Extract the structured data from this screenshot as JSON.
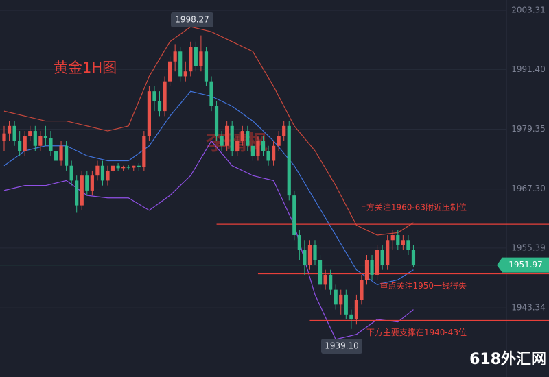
{
  "chart_data": {
    "type": "candlestick",
    "title": "黄金1H图",
    "watermark": "李晴枫",
    "site": "618外汇网",
    "ylim": [
      1929.4,
      2005.4
    ],
    "yticks": [
      2003.31,
      {
        "value": 1991.4,
        "label": "1991.40"
      },
      1979.35,
      {
        "value": 1967.3,
        "label": "1967.30"
      },
      1955.39,
      1943.34
    ],
    "grid": true,
    "up_color": "#e8524a",
    "down_color": "#2fb889",
    "candles": {
      "open": [
        1977,
        1978.5,
        1980,
        1977,
        1975,
        1978,
        1979,
        1976,
        1978,
        1977.5,
        1975,
        1973,
        1976,
        1972,
        1969,
        1964,
        1970,
        1967,
        1970,
        1972,
        1969,
        1971,
        1972,
        1971.5,
        1971.8,
        1971.6,
        1972,
        1971.7,
        1978,
        1987,
        1985,
        1983,
        1989,
        1993,
        1995,
        1990,
        1991,
        1996,
        1992,
        1995,
        1989,
        1984,
        1978,
        1976,
        1980,
        1975,
        1977,
        1979,
        1976,
        1974,
        1977,
        1975,
        1973,
        1976,
        1978,
        1980,
        1966,
        1958,
        1955,
        1952,
        1956,
        1953,
        1948,
        1950,
        1947,
        1944,
        1946,
        1942,
        1941,
        1945,
        1949,
        1953,
        1950,
        1955,
        1952,
        1957,
        1958,
        1956,
        1957,
        1955
      ],
      "high": [
        1980,
        1981,
        1981,
        1979,
        1979,
        1980,
        1980,
        1979,
        1980,
        1979,
        1977,
        1977,
        1977,
        1973,
        1970,
        1971,
        1971,
        1971,
        1973,
        1973,
        1972,
        1972.5,
        1972.5,
        1972,
        1972.2,
        1972,
        1972.5,
        1979,
        1988,
        1988,
        1987,
        1990,
        1994,
        1996.5,
        1996,
        1993,
        1997,
        1997,
        1998.27,
        1996,
        1990,
        1985,
        1979,
        1981,
        1981,
        1978,
        1980,
        1980,
        1977,
        1978,
        1978,
        1976,
        1977,
        1979,
        1981,
        1981,
        1967,
        1959,
        1957,
        1957,
        1957,
        1954,
        1951,
        1951,
        1948,
        1947,
        1947,
        1943,
        1946,
        1950,
        1954,
        1954,
        1956,
        1956,
        1958,
        1959,
        1959,
        1958,
        1958,
        1956
      ],
      "low": [
        1975,
        1977,
        1976,
        1974,
        1974,
        1977,
        1975,
        1975,
        1976,
        1974,
        1972,
        1972,
        1971,
        1968,
        1962.5,
        1963,
        1966,
        1966,
        1969,
        1968,
        1968,
        1970.5,
        1971,
        1971,
        1971.2,
        1971,
        1971,
        1971,
        1977,
        1983,
        1982,
        1982,
        1988,
        1991,
        1989,
        1989,
        1990,
        1991,
        1991,
        1988,
        1983,
        1977,
        1975,
        1975,
        1974,
        1974,
        1976,
        1975,
        1973,
        1973,
        1974,
        1972,
        1972,
        1975,
        1977,
        1965,
        1957,
        1953,
        1950,
        1951,
        1952,
        1947,
        1947,
        1946,
        1943,
        1942,
        1941,
        1939.1,
        1940,
        1944,
        1948,
        1949,
        1949,
        1951,
        1951,
        1955,
        1955,
        1955,
        1954,
        1951.5
      ],
      "close": [
        1978.5,
        1980,
        1977,
        1975,
        1978,
        1979,
        1976,
        1978,
        1977.5,
        1975,
        1973,
        1976,
        1972,
        1969,
        1964,
        1970,
        1967,
        1970,
        1972,
        1969,
        1971,
        1972,
        1971.5,
        1971.8,
        1971.6,
        1972,
        1971.7,
        1978,
        1987,
        1985,
        1983,
        1989,
        1993,
        1995,
        1990,
        1991,
        1996,
        1992,
        1995,
        1989,
        1984,
        1978,
        1976,
        1980,
        1975,
        1977,
        1979,
        1976,
        1974,
        1977,
        1975,
        1973,
        1976,
        1978,
        1980,
        1966,
        1958,
        1955,
        1952,
        1956,
        1953,
        1948,
        1950,
        1947,
        1944,
        1946,
        1942,
        1941,
        1945,
        1949,
        1953,
        1950,
        1955,
        1952,
        1957,
        1958,
        1956,
        1957,
        1955,
        1951.97
      ]
    },
    "bands": [
      {
        "color": "#c9483c",
        "x": [
          0,
          4,
          8,
          12,
          16,
          20,
          24,
          28,
          32,
          36,
          40,
          44,
          48,
          52,
          56,
          60,
          64,
          68,
          72,
          76,
          79
        ],
        "values": [
          1983,
          1982,
          1981,
          1981,
          1980,
          1979,
          1980,
          1990,
          1997,
          2000,
          1999,
          1997,
          1995,
          1988,
          1980,
          1975,
          1968,
          1960,
          1958,
          1958.5,
          1960.5
        ]
      },
      {
        "color": "#4174dc",
        "x": [
          0,
          4,
          8,
          12,
          16,
          20,
          24,
          28,
          32,
          36,
          40,
          44,
          48,
          52,
          56,
          60,
          64,
          68,
          72,
          76,
          79
        ],
        "values": [
          1972,
          1975,
          1976,
          1976,
          1974,
          1973,
          1973,
          1976,
          1982,
          1987,
          1986,
          1984,
          1981,
          1977,
          1972,
          1965,
          1958,
          1951,
          1948,
          1949,
          1951
        ]
      },
      {
        "color": "#9050e6",
        "x": [
          0,
          4,
          8,
          12,
          16,
          20,
          24,
          28,
          32,
          36,
          40,
          44,
          48,
          52,
          56,
          60,
          64,
          68,
          72,
          76,
          79
        ],
        "values": [
          1967,
          1968,
          1968,
          1969,
          1966,
          1965.5,
          1965.5,
          1963,
          1966,
          1970,
          1977,
          1972,
          1970,
          1969,
          1960,
          1946,
          1937,
          1938,
          1941,
          1940.5,
          1943
        ]
      }
    ],
    "levels": [
      {
        "value": 1960.2,
        "start": 41,
        "text": "上方关注1960-63附近压制位"
      },
      {
        "value": 1950.2,
        "start": 49,
        "text": "重点关注1950一线得失"
      },
      {
        "value": 1940.8,
        "start": 59,
        "text": "下方主要支撑在1940-43位"
      }
    ],
    "high_label": "1998.27",
    "low_label": "1939.10",
    "current_price": 1951.97
  }
}
